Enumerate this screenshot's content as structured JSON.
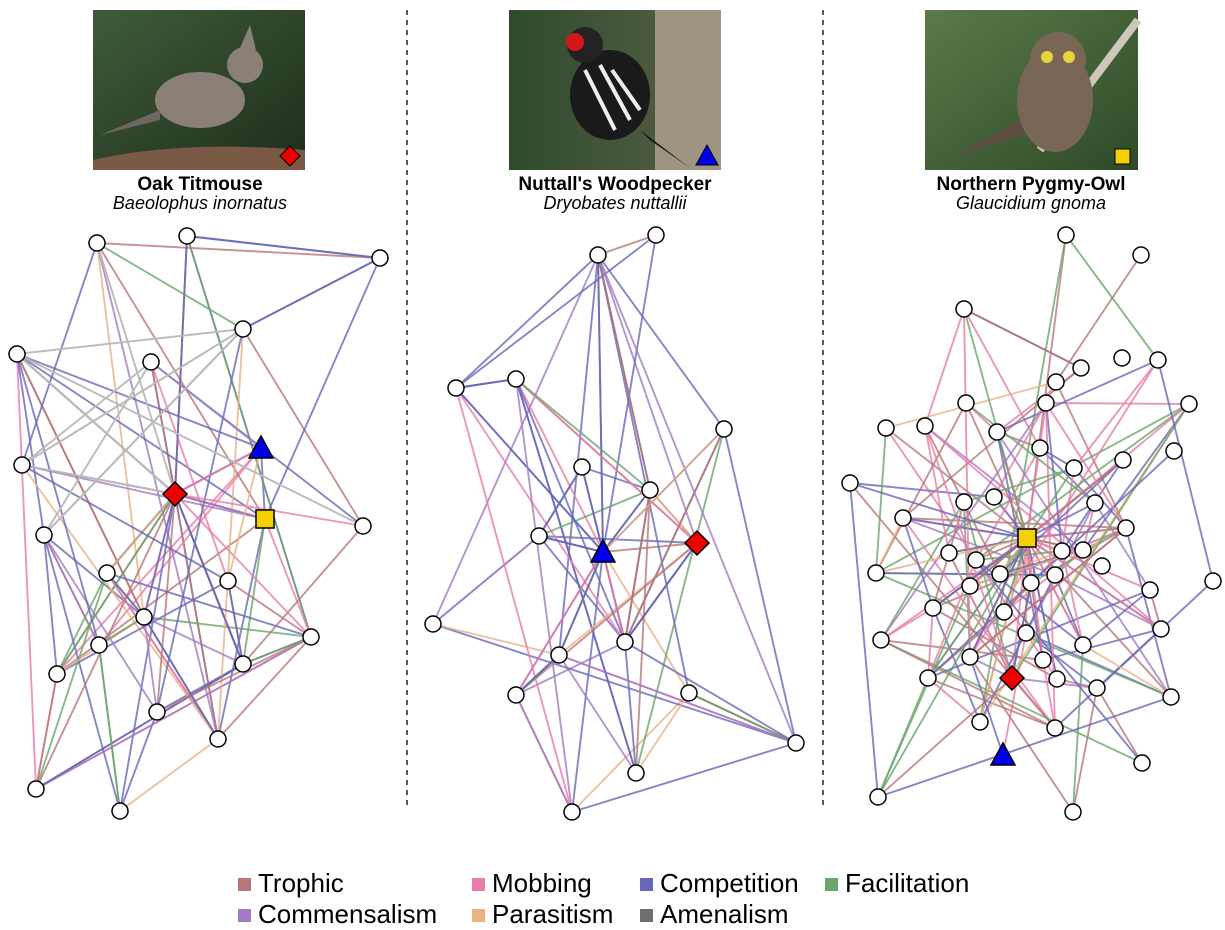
{
  "panels": [
    {
      "common_name": "Oak Titmouse",
      "scientific_name": "Baeolophus inornatus"
    },
    {
      "common_name": "Nuttall's Woodpecker",
      "scientific_name": "Dryobates nuttallii"
    },
    {
      "common_name": "Northern Pygmy-Owl",
      "scientific_name": "Glaucidium gnoma"
    }
  ],
  "legend": [
    {
      "label": "Trophic",
      "color": "#b87777"
    },
    {
      "label": "Mobbing",
      "color": "#e97ca9"
    },
    {
      "label": "Competition",
      "color": "#6868b8"
    },
    {
      "label": "Facilitation",
      "color": "#6aa66a"
    },
    {
      "label": "Commensalism",
      "color": "#a27bc2"
    },
    {
      "label": "Parasitism",
      "color": "#e8b283"
    },
    {
      "label": "Amenalism",
      "color": "#6e6e6e"
    }
  ]
}
